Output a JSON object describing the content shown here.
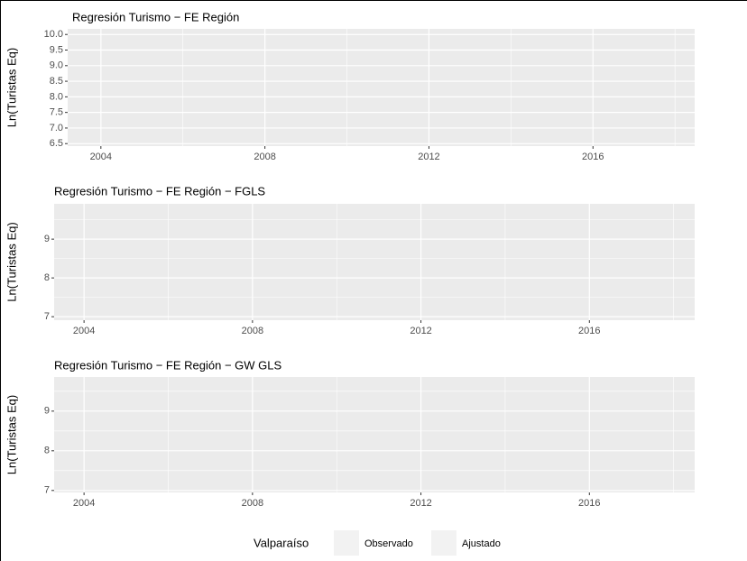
{
  "chart_data": [
    {
      "type": "line",
      "title": "Regresión Turismo − FE Región",
      "y_label": "Ln(Turistas Eq)",
      "xlim": [
        2003.19,
        2018.48
      ],
      "xticks": [
        2004,
        2008,
        2012,
        2016
      ],
      "xminor": [
        2006,
        2010,
        2014,
        2018
      ],
      "ylim": [
        6.42,
        10.18
      ],
      "yticks": [
        {
          "value": 6.5,
          "label": "6.5"
        },
        {
          "value": 7,
          "label": "7.0"
        },
        7.5,
        {
          "value": 8,
          "label": "8.0"
        },
        8.5,
        {
          "value": 9,
          "label": "9.0"
        },
        9.5,
        {
          "value": 10,
          "label": "10.0"
        }
      ],
      "grid": true,
      "series": []
    },
    {
      "type": "line",
      "title": "Regresión Turismo − FE Región − FGLS",
      "y_label": "Ln(Turistas Eq)",
      "xlim": [
        2003.29,
        2018.5
      ],
      "xticks": [
        2004,
        2008,
        2012,
        2016
      ],
      "xminor": [
        2006,
        2010,
        2014,
        2018
      ],
      "ylim": [
        6.91,
        9.91
      ],
      "yticks": [
        7,
        8,
        9
      ],
      "yminor": [
        7.5,
        8.5,
        9.5
      ],
      "grid": true,
      "series": []
    },
    {
      "type": "line",
      "title": "Regresión Turismo − FE Región − GW GLS",
      "y_label": "Ln(Turistas Eq)",
      "xlim": [
        2003.29,
        2018.5
      ],
      "xticks": [
        2004,
        2008,
        2012,
        2016
      ],
      "xminor": [
        2006,
        2010,
        2014,
        2018
      ],
      "ylim": [
        6.95,
        9.86
      ],
      "yticks": [
        7,
        8,
        9
      ],
      "yminor": [
        7.5,
        8.5,
        9.5
      ],
      "grid": true,
      "series": []
    }
  ],
  "legend": {
    "title": "Valparaíso",
    "entries": [
      "Observado",
      "Ajustado"
    ]
  }
}
